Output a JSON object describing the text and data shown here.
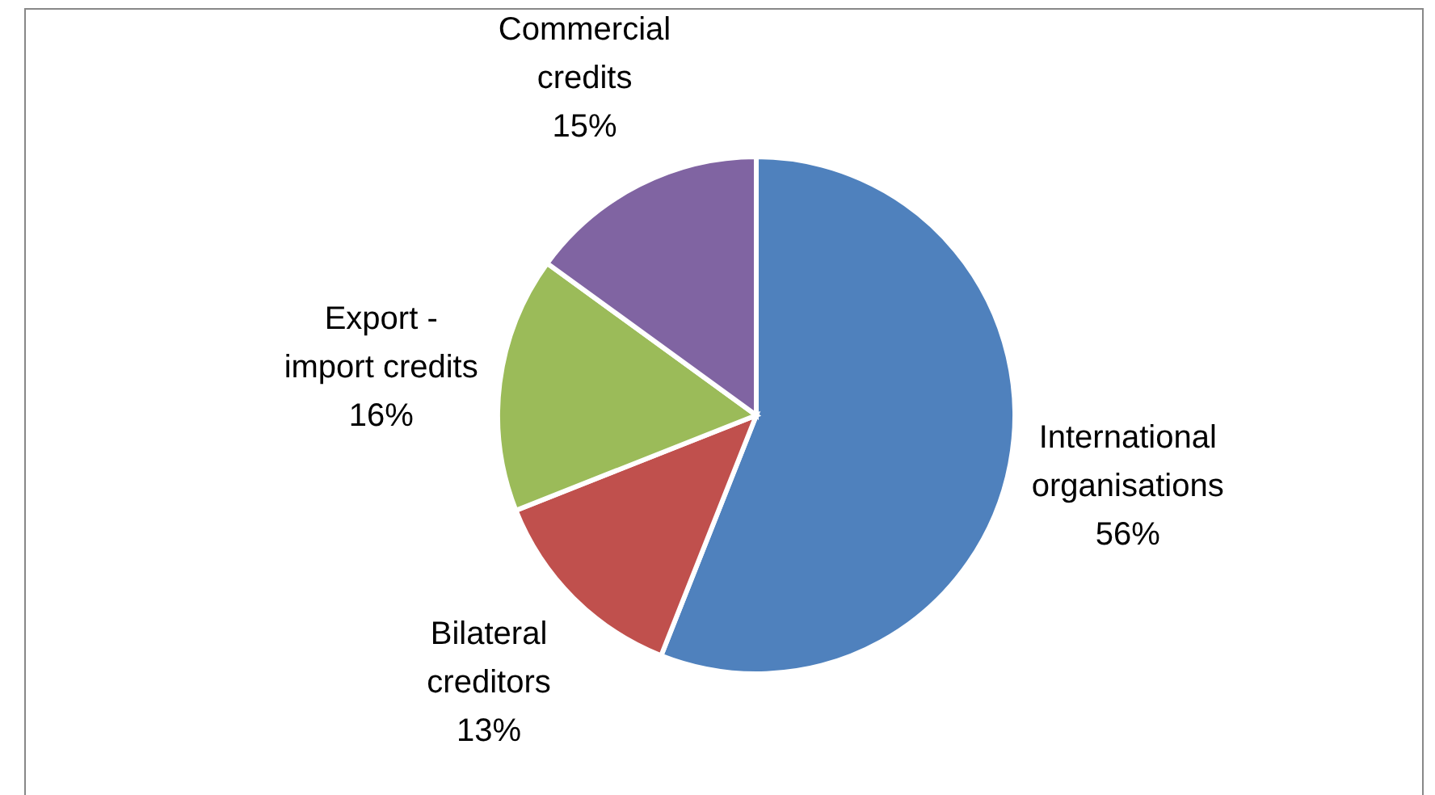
{
  "chart_data": {
    "type": "pie",
    "categories": [
      "International organisations",
      "Bilateral creditors",
      "Export - import credits",
      "Commercial credits"
    ],
    "values": [
      56,
      13,
      16,
      15
    ],
    "colors": [
      "#4f81bd",
      "#c0504d",
      "#9bbb59",
      "#8064a2"
    ],
    "value_labels": [
      "56%",
      "13%",
      "16%",
      "15%"
    ]
  }
}
